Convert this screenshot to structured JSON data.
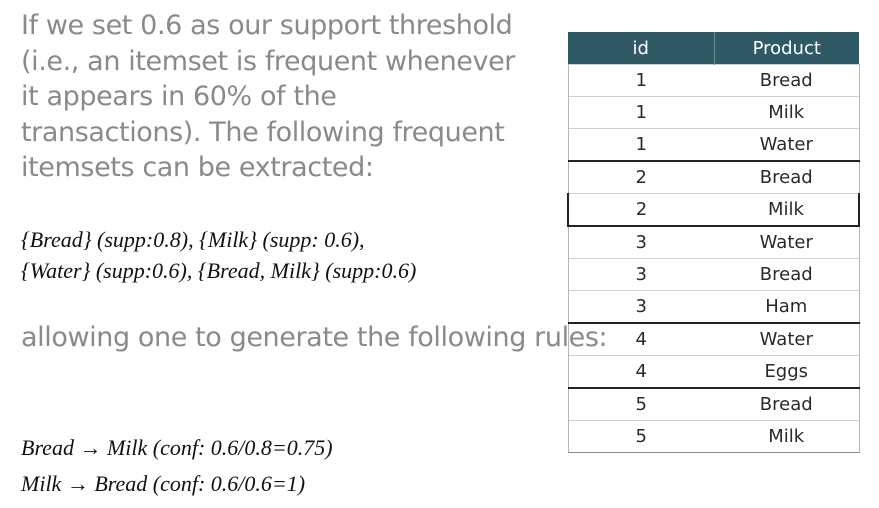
{
  "intro_text": "If we set 0.6 as our support threshold (i.e., an itemset is frequent whenever it appears in 60% of the transactions). The following frequent itemsets can be extracted:",
  "itemsets": [
    "{Bread} (supp:0.8), {Milk} (supp: 0.6),",
    "{Water} (supp:0.6), {Bread, Milk} (supp:0.6)"
  ],
  "rules_intro": "allowing one to generate the following rules:",
  "rules": [
    "Bread → Milk (conf: 0.6/0.8=0.75)",
    "Milk → Bread (conf: 0.6/0.6=1)"
  ],
  "table": {
    "headers": [
      "id",
      "Product"
    ],
    "rows": [
      [
        "1",
        "Bread"
      ],
      [
        "1",
        "Milk"
      ],
      [
        "1",
        "Water"
      ],
      [
        "2",
        "Bread"
      ],
      [
        "2",
        "Milk"
      ],
      [
        "3",
        "Water"
      ],
      [
        "3",
        "Bread"
      ],
      [
        "3",
        "Ham"
      ],
      [
        "4",
        "Water"
      ],
      [
        "4",
        "Eggs"
      ],
      [
        "5",
        "Bread"
      ],
      [
        "5",
        "Milk"
      ]
    ]
  },
  "colors": {
    "header_bg": "#2e5965",
    "header_text": "#ffffff",
    "body_text_gray": "#8a8a8a",
    "formula_text": "#111111"
  }
}
